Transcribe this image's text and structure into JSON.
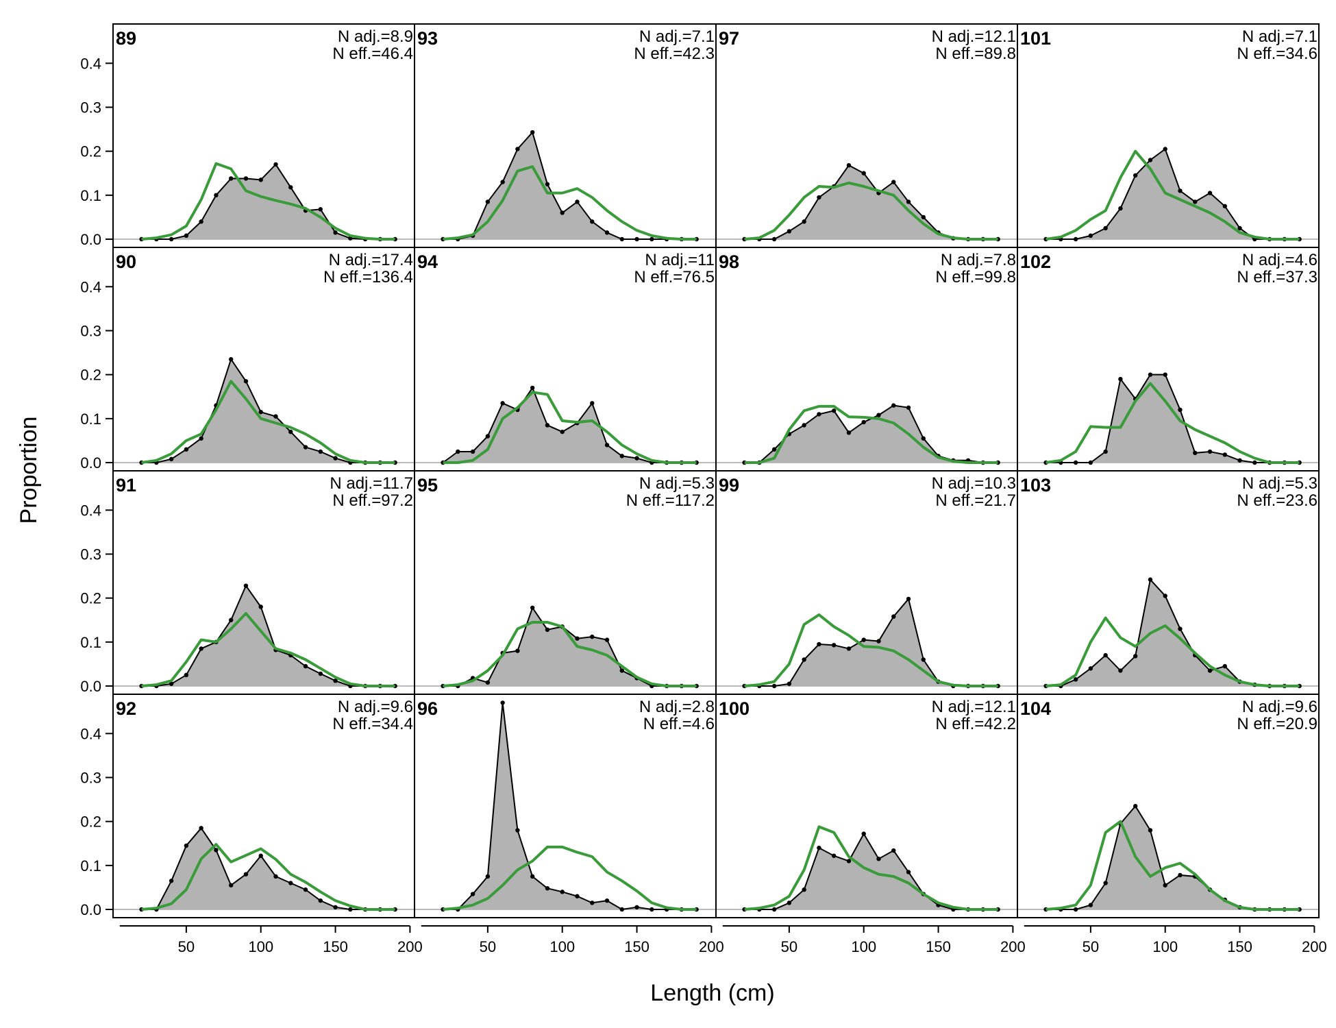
{
  "chart_data": {
    "type": "area",
    "xlabel": "Length (cm)",
    "ylabel": "Proportion",
    "xlim": [
      0,
      200
    ],
    "ylim": [
      0,
      0.48
    ],
    "x_ticks": [
      "50",
      "100",
      "150",
      "200"
    ],
    "y_ticks": [
      "0.0",
      "0.1",
      "0.2",
      "0.3",
      "0.4"
    ],
    "grid": false,
    "colors": {
      "observed_fill": "#b3b3b3",
      "observed_line": "#000000",
      "expected_line": "#3a9b3a",
      "zero_line": "#bbbbbb"
    },
    "x": [
      20,
      30,
      40,
      50,
      60,
      70,
      80,
      90,
      100,
      110,
      120,
      130,
      140,
      150,
      160,
      170,
      180,
      190
    ],
    "panels": [
      {
        "title": "89",
        "note1": "N adj.=8.9",
        "note2": "N eff.=46.4",
        "observed": [
          0.0,
          0.0,
          0.0,
          0.008,
          0.04,
          0.1,
          0.138,
          0.138,
          0.135,
          0.17,
          0.118,
          0.065,
          0.068,
          0.015,
          0.002,
          0.0,
          0.0,
          0.0
        ],
        "expected": [
          0.0,
          0.003,
          0.01,
          0.03,
          0.09,
          0.172,
          0.16,
          0.11,
          0.097,
          0.088,
          0.08,
          0.07,
          0.05,
          0.025,
          0.008,
          0.002,
          0.0,
          0.0
        ]
      },
      {
        "title": "90",
        "note1": "N adj.=17.4",
        "note2": "N eff.=136.4",
        "observed": [
          0.0,
          0.0,
          0.008,
          0.03,
          0.055,
          0.13,
          0.235,
          0.185,
          0.115,
          0.105,
          0.07,
          0.035,
          0.025,
          0.01,
          0.0,
          0.0,
          0.0,
          0.0
        ],
        "expected": [
          0.0,
          0.005,
          0.02,
          0.05,
          0.065,
          0.12,
          0.185,
          0.145,
          0.1,
          0.09,
          0.08,
          0.065,
          0.045,
          0.02,
          0.005,
          0.0,
          0.0,
          0.0
        ]
      },
      {
        "title": "91",
        "note1": "N adj.=11.7",
        "note2": "N eff.=97.2",
        "observed": [
          0.0,
          0.0,
          0.005,
          0.025,
          0.085,
          0.1,
          0.15,
          0.228,
          0.18,
          0.082,
          0.07,
          0.045,
          0.028,
          0.012,
          0.0,
          0.0,
          0.0,
          0.0
        ],
        "expected": [
          0.0,
          0.003,
          0.012,
          0.055,
          0.105,
          0.1,
          0.13,
          0.165,
          0.125,
          0.085,
          0.075,
          0.06,
          0.04,
          0.02,
          0.005,
          0.0,
          0.0,
          0.0
        ]
      },
      {
        "title": "92",
        "note1": "N adj.=9.6",
        "note2": "N eff.=34.4",
        "observed": [
          0.0,
          0.0,
          0.065,
          0.145,
          0.185,
          0.135,
          0.055,
          0.08,
          0.122,
          0.075,
          0.06,
          0.045,
          0.02,
          0.005,
          0.0,
          0.0,
          0.0,
          0.0
        ],
        "expected": [
          0.0,
          0.003,
          0.013,
          0.045,
          0.115,
          0.148,
          0.108,
          0.123,
          0.138,
          0.114,
          0.08,
          0.062,
          0.04,
          0.02,
          0.008,
          0.0,
          0.0,
          0.0
        ]
      },
      {
        "title": "93",
        "note1": "N adj.=7.1",
        "note2": "N eff.=42.3",
        "observed": [
          0.0,
          0.0,
          0.008,
          0.085,
          0.13,
          0.205,
          0.243,
          0.125,
          0.06,
          0.085,
          0.04,
          0.015,
          0.0,
          0.0,
          0.0,
          0.0,
          0.0,
          0.0
        ],
        "expected": [
          0.0,
          0.003,
          0.01,
          0.04,
          0.088,
          0.155,
          0.165,
          0.105,
          0.105,
          0.115,
          0.095,
          0.065,
          0.04,
          0.02,
          0.008,
          0.002,
          0.0,
          0.0
        ]
      },
      {
        "title": "94",
        "note1": "N adj.=11",
        "note2": "N eff.=76.5",
        "observed": [
          0.0,
          0.025,
          0.025,
          0.06,
          0.135,
          0.12,
          0.17,
          0.085,
          0.07,
          0.09,
          0.135,
          0.04,
          0.015,
          0.01,
          0.0,
          0.0,
          0.0,
          0.0
        ],
        "expected": [
          0.0,
          0.0,
          0.005,
          0.03,
          0.1,
          0.125,
          0.16,
          0.155,
          0.095,
          0.092,
          0.095,
          0.07,
          0.04,
          0.02,
          0.005,
          0.0,
          0.0,
          0.0
        ]
      },
      {
        "title": "95",
        "note1": "N adj.=5.3",
        "note2": "N eff.=117.2",
        "observed": [
          0.0,
          0.0,
          0.018,
          0.008,
          0.075,
          0.08,
          0.178,
          0.128,
          0.135,
          0.108,
          0.112,
          0.105,
          0.035,
          0.018,
          0.0,
          0.0,
          0.0,
          0.0
        ],
        "expected": [
          0.0,
          0.003,
          0.012,
          0.035,
          0.07,
          0.13,
          0.145,
          0.145,
          0.135,
          0.09,
          0.082,
          0.07,
          0.045,
          0.02,
          0.005,
          0.0,
          0.0,
          0.0
        ]
      },
      {
        "title": "96",
        "note1": "N adj.=2.8",
        "note2": "N eff.=4.6",
        "observed": [
          0.0,
          0.0,
          0.035,
          0.075,
          0.47,
          0.18,
          0.075,
          0.048,
          0.04,
          0.03,
          0.015,
          0.02,
          0.0,
          0.005,
          0.0,
          0.0,
          0.0,
          0.0
        ],
        "expected": [
          0.0,
          0.003,
          0.01,
          0.025,
          0.055,
          0.09,
          0.11,
          0.142,
          0.142,
          0.13,
          0.12,
          0.085,
          0.065,
          0.042,
          0.015,
          0.004,
          0.0,
          0.0
        ]
      },
      {
        "title": "97",
        "note1": "N adj.=12.1",
        "note2": "N eff.=89.8",
        "observed": [
          0.0,
          0.0,
          0.0,
          0.018,
          0.04,
          0.095,
          0.12,
          0.168,
          0.15,
          0.105,
          0.13,
          0.085,
          0.05,
          0.015,
          0.002,
          0.0,
          0.0,
          0.0
        ],
        "expected": [
          0.0,
          0.003,
          0.02,
          0.055,
          0.095,
          0.12,
          0.118,
          0.128,
          0.12,
          0.11,
          0.1,
          0.065,
          0.035,
          0.012,
          0.003,
          0.0,
          0.0,
          0.0
        ]
      },
      {
        "title": "98",
        "note1": "N adj.=7.8",
        "note2": "N eff.=99.8",
        "observed": [
          0.0,
          0.0,
          0.03,
          0.065,
          0.085,
          0.11,
          0.118,
          0.068,
          0.092,
          0.108,
          0.13,
          0.125,
          0.055,
          0.015,
          0.005,
          0.005,
          0.0,
          0.0
        ],
        "expected": [
          0.0,
          0.0,
          0.01,
          0.075,
          0.118,
          0.128,
          0.128,
          0.104,
          0.103,
          0.1,
          0.09,
          0.065,
          0.035,
          0.012,
          0.003,
          0.0,
          0.0,
          0.0
        ]
      },
      {
        "title": "99",
        "note1": "N adj.=10.3",
        "note2": "N eff.=21.7",
        "observed": [
          0.0,
          0.0,
          0.0,
          0.005,
          0.06,
          0.095,
          0.093,
          0.085,
          0.105,
          0.102,
          0.158,
          0.198,
          0.06,
          0.01,
          0.0,
          0.0,
          0.0,
          0.0
        ],
        "expected": [
          0.0,
          0.003,
          0.01,
          0.05,
          0.14,
          0.162,
          0.135,
          0.115,
          0.09,
          0.088,
          0.08,
          0.06,
          0.035,
          0.01,
          0.002,
          0.0,
          0.0,
          0.0
        ]
      },
      {
        "title": "100",
        "note1": "N adj.=12.1",
        "note2": "N eff.=42.2",
        "observed": [
          0.0,
          0.0,
          0.0,
          0.015,
          0.045,
          0.14,
          0.122,
          0.11,
          0.172,
          0.115,
          0.134,
          0.085,
          0.035,
          0.01,
          0.0,
          0.0,
          0.0,
          0.0
        ],
        "expected": [
          0.0,
          0.003,
          0.01,
          0.03,
          0.09,
          0.188,
          0.175,
          0.12,
          0.095,
          0.08,
          0.075,
          0.06,
          0.035,
          0.015,
          0.005,
          0.0,
          0.0,
          0.0
        ]
      },
      {
        "title": "101",
        "note1": "N adj.=7.1",
        "note2": "N eff.=34.6",
        "observed": [
          0.0,
          0.0,
          0.0,
          0.008,
          0.025,
          0.07,
          0.145,
          0.18,
          0.205,
          0.11,
          0.085,
          0.105,
          0.075,
          0.025,
          0.0,
          0.0,
          0.0,
          0.0
        ],
        "expected": [
          0.0,
          0.005,
          0.02,
          0.045,
          0.065,
          0.14,
          0.2,
          0.16,
          0.105,
          0.09,
          0.075,
          0.06,
          0.04,
          0.015,
          0.005,
          0.0,
          0.0,
          0.0
        ]
      },
      {
        "title": "102",
        "note1": "N adj.=4.6",
        "note2": "N eff.=37.3",
        "observed": [
          0.0,
          0.0,
          0.0,
          0.0,
          0.025,
          0.19,
          0.145,
          0.2,
          0.2,
          0.12,
          0.022,
          0.025,
          0.018,
          0.005,
          0.0,
          0.0,
          0.0,
          0.0
        ],
        "expected": [
          0.0,
          0.005,
          0.025,
          0.082,
          0.08,
          0.08,
          0.14,
          0.18,
          0.14,
          0.095,
          0.075,
          0.06,
          0.045,
          0.025,
          0.01,
          0.0,
          0.0,
          0.0
        ]
      },
      {
        "title": "103",
        "note1": "N adj.=5.3",
        "note2": "N eff.=23.6",
        "observed": [
          0.0,
          0.0,
          0.015,
          0.04,
          0.07,
          0.035,
          0.068,
          0.242,
          0.205,
          0.13,
          0.07,
          0.035,
          0.045,
          0.01,
          0.003,
          0.0,
          0.0,
          0.0
        ],
        "expected": [
          0.0,
          0.003,
          0.025,
          0.1,
          0.155,
          0.11,
          0.09,
          0.12,
          0.137,
          0.108,
          0.075,
          0.045,
          0.025,
          0.01,
          0.003,
          0.0,
          0.0,
          0.0
        ]
      },
      {
        "title": "104",
        "note1": "N adj.=9.6",
        "note2": "N eff.=20.9",
        "observed": [
          0.0,
          0.0,
          0.0,
          0.01,
          0.06,
          0.195,
          0.235,
          0.18,
          0.055,
          0.078,
          0.075,
          0.045,
          0.022,
          0.005,
          0.0,
          0.0,
          0.0,
          0.0
        ],
        "expected": [
          0.0,
          0.003,
          0.01,
          0.055,
          0.175,
          0.2,
          0.12,
          0.075,
          0.095,
          0.105,
          0.08,
          0.045,
          0.02,
          0.005,
          0.0,
          0.0,
          0.0,
          0.0
        ]
      }
    ]
  }
}
